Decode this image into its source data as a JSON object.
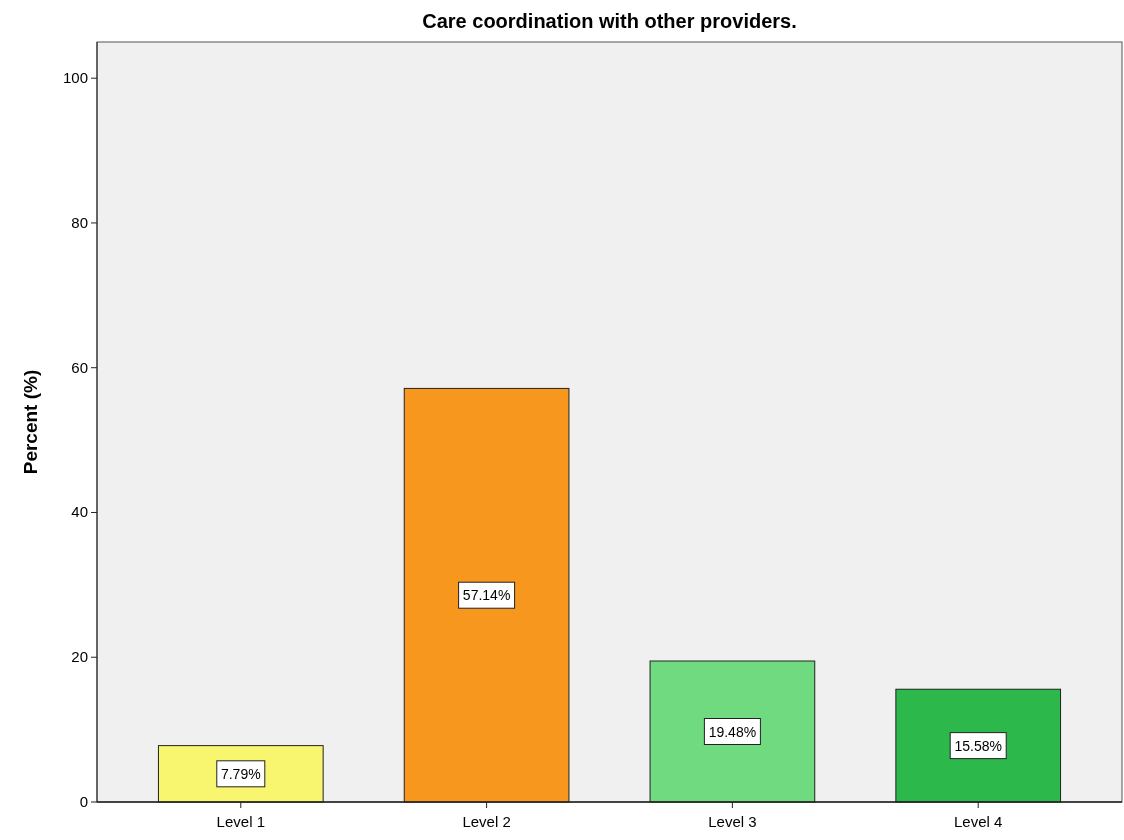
{
  "chart_data": {
    "type": "bar",
    "title": "Care coordination with other providers.",
    "ylabel": "Percent (%)",
    "categories": [
      "Level 1",
      "Level 2",
      "Level 3",
      "Level 4"
    ],
    "values": [
      7.79,
      57.14,
      19.48,
      15.58
    ],
    "colors": [
      "#f8f56e",
      "#f7971e",
      "#70da80",
      "#2db84b"
    ],
    "value_labels": [
      "7.79%",
      "57.14%",
      "19.48%",
      "15.58%"
    ],
    "ylim": [
      0,
      105
    ],
    "yticks": [
      0,
      20,
      40,
      60,
      80,
      100
    ],
    "grid": false
  }
}
